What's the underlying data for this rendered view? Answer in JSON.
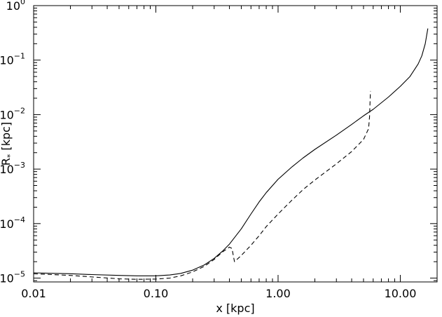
{
  "chart_data": {
    "type": "line",
    "xlabel": "x [kpc]",
    "ylabel_main": "R",
    "ylabel_sub": "*",
    "ylabel_rest": " [kpc]",
    "xscale": "log",
    "yscale": "log",
    "xlim": [
      0.01,
      20.0
    ],
    "ylim": [
      8.5e-06,
      1.0
    ],
    "grid": false,
    "x_ticks": [
      {
        "value": 0.01,
        "label": "0.01"
      },
      {
        "value": 0.1,
        "label": "0.10"
      },
      {
        "value": 1.0,
        "label": "1.00"
      },
      {
        "value": 10.0,
        "label": "10.00"
      }
    ],
    "y_ticks": [
      {
        "value": 1e-05,
        "base": "10",
        "exp": "−5"
      },
      {
        "value": 0.0001,
        "base": "10",
        "exp": "−4"
      },
      {
        "value": 0.001,
        "base": "10",
        "exp": "−3"
      },
      {
        "value": 0.01,
        "base": "10",
        "exp": "−2"
      },
      {
        "value": 0.1,
        "base": "10",
        "exp": "−1"
      },
      {
        "value": 1.0,
        "base": "10",
        "exp": "0"
      }
    ],
    "series": [
      {
        "style": "solid",
        "points": [
          [
            0.01,
            1.25e-05
          ],
          [
            0.015,
            1.22e-05
          ],
          [
            0.02,
            1.2e-05
          ],
          [
            0.03,
            1.16e-05
          ],
          [
            0.05,
            1.12e-05
          ],
          [
            0.07,
            1.1e-05
          ],
          [
            0.1,
            1.1e-05
          ],
          [
            0.13,
            1.14e-05
          ],
          [
            0.16,
            1.22e-05
          ],
          [
            0.2,
            1.4e-05
          ],
          [
            0.25,
            1.75e-05
          ],
          [
            0.3,
            2.3e-05
          ],
          [
            0.35,
            3.1e-05
          ],
          [
            0.4,
            4.2e-05
          ],
          [
            0.5,
            8e-05
          ],
          [
            0.6,
            0.00015
          ],
          [
            0.7,
            0.00025
          ],
          [
            0.8,
            0.00037
          ],
          [
            1.0,
            0.00065
          ],
          [
            1.3,
            0.0011
          ],
          [
            1.6,
            0.0016
          ],
          [
            2.0,
            0.0023
          ],
          [
            3.0,
            0.0042
          ],
          [
            4.0,
            0.0066
          ],
          [
            5.0,
            0.0095
          ],
          [
            6.0,
            0.0125
          ],
          [
            8.0,
            0.021
          ],
          [
            10.0,
            0.033
          ],
          [
            12.0,
            0.05
          ],
          [
            14.0,
            0.085
          ],
          [
            15.0,
            0.12
          ],
          [
            16.0,
            0.2
          ],
          [
            16.8,
            0.38
          ]
        ]
      },
      {
        "style": "dashed",
        "points": [
          [
            0.01,
            1.2e-05
          ],
          [
            0.02,
            1.12e-05
          ],
          [
            0.03,
            1.05e-05
          ],
          [
            0.05,
            9.7e-06
          ],
          [
            0.07,
            9.5e-06
          ],
          [
            0.1,
            9.6e-06
          ],
          [
            0.13,
            1e-05
          ],
          [
            0.16,
            1.1e-05
          ],
          [
            0.2,
            1.3e-05
          ],
          [
            0.25,
            1.65e-05
          ],
          [
            0.3,
            2.2e-05
          ],
          [
            0.35,
            3e-05
          ],
          [
            0.4,
            3.7e-05
          ],
          [
            0.42,
            3.5e-05
          ],
          [
            0.43,
            2.6e-05
          ],
          [
            0.44,
            2e-05
          ],
          [
            0.5,
            2.6e-05
          ],
          [
            0.6,
            4e-05
          ],
          [
            0.7,
            6e-05
          ],
          [
            0.8,
            8.8e-05
          ],
          [
            1.0,
            0.00015
          ],
          [
            1.3,
            0.00027
          ],
          [
            1.6,
            0.00042
          ],
          [
            2.0,
            0.00063
          ],
          [
            3.0,
            0.00125
          ],
          [
            4.0,
            0.0021
          ],
          [
            5.0,
            0.0035
          ],
          [
            5.5,
            0.0055
          ],
          [
            5.6,
            0.009
          ],
          [
            5.65,
            0.016
          ],
          [
            5.7,
            0.027
          ]
        ]
      }
    ]
  }
}
